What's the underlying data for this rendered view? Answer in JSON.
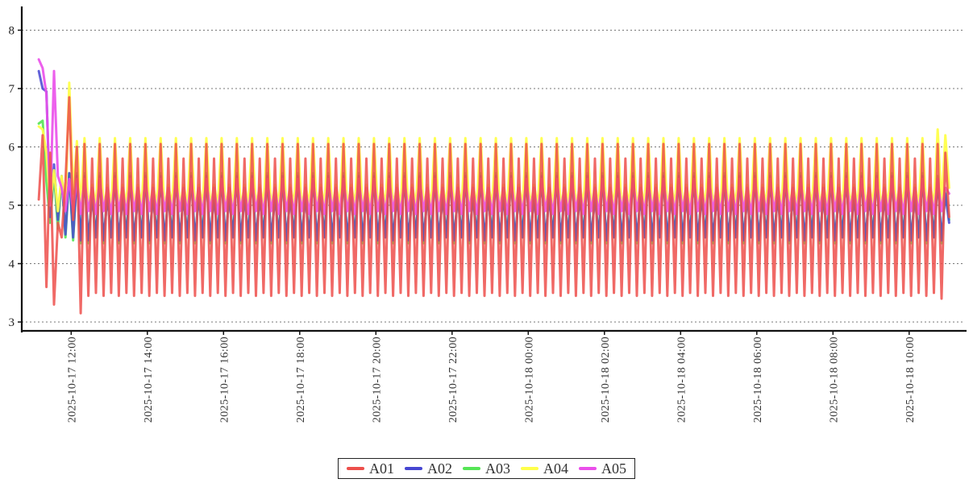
{
  "chart_data": {
    "type": "line",
    "title": "",
    "background": "#ffffff",
    "grid": {
      "shown": true,
      "style": "dashed",
      "color": "#777777"
    },
    "y_axis": {
      "ticks": [
        3,
        4,
        5,
        6,
        7,
        8
      ],
      "range": [
        2.85,
        8.4
      ],
      "label": ""
    },
    "x_axis": {
      "label": "",
      "tick_rotation_degrees": 90,
      "tick_interval_minutes": 120,
      "tick_labels": [
        "2025-10-17 12:00",
        "2025-10-17 14:00",
        "2025-10-17 16:00",
        "2025-10-17 18:00",
        "2025-10-17 20:00",
        "2025-10-17 22:00",
        "2025-10-18 00:00",
        "2025-10-18 02:00",
        "2025-10-18 04:00",
        "2025-10-18 06:00",
        "2025-10-18 08:00",
        "2025-10-18 10:00"
      ]
    },
    "sampling": {
      "sample_interval_minutes": 6,
      "start_minutes_before_first_tick": 51
    },
    "draw_order": [
      "A03",
      "A02",
      "A04",
      "A05",
      "A01"
    ],
    "series": [
      {
        "name": "A01",
        "color": "#ed4f4b",
        "opacity": 0.85,
        "intro": [
          5.1,
          6.2,
          3.6,
          5.9,
          3.3,
          4.7,
          4.45,
          5.4,
          6.85,
          4.75,
          6.0,
          3.15,
          6.05,
          3.45,
          5.8,
          3.5
        ],
        "cycle": [
          6.05,
          3.45,
          5.8,
          3.5
        ],
        "cycle_repeats": 55,
        "outro": [
          6.05,
          3.4,
          5.9,
          4.8
        ]
      },
      {
        "name": "A02",
        "color": "#4646d2",
        "opacity": 0.85,
        "intro": [
          7.3,
          7.0,
          6.95,
          4.8,
          5.7,
          4.75,
          5.5,
          4.5,
          5.55,
          4.45,
          5.5,
          4.4,
          5.5,
          4.4,
          5.15,
          4.45
        ],
        "cycle": [
          5.5,
          4.4,
          5.15,
          4.45
        ],
        "cycle_repeats": 55,
        "outro": [
          5.45,
          4.4,
          5.2,
          4.7
        ]
      },
      {
        "name": "A03",
        "color": "#55e555",
        "opacity": 0.9,
        "intro": [
          6.4,
          6.45,
          5.4,
          4.7,
          5.55,
          4.6,
          5.5,
          4.45,
          5.55,
          4.4,
          5.55,
          4.35,
          5.55,
          4.35,
          5.2,
          4.45
        ],
        "cycle": [
          5.55,
          4.35,
          5.2,
          4.45
        ],
        "cycle_repeats": 55,
        "outro": [
          5.5,
          4.35,
          5.25,
          4.75
        ]
      },
      {
        "name": "A04",
        "color": "#ffff4a",
        "opacity": 0.95,
        "intro": [
          6.35,
          6.3,
          5.9,
          5.0,
          5.6,
          4.9,
          5.5,
          5.0,
          7.1,
          5.2,
          6.1,
          4.95,
          6.15,
          4.95,
          5.35,
          5.0
        ],
        "cycle": [
          6.15,
          4.95,
          5.35,
          5.0
        ],
        "cycle_repeats": 55,
        "outro": [
          6.3,
          5.0,
          6.2,
          5.3
        ]
      },
      {
        "name": "A05",
        "color": "#ea4fea",
        "opacity": 0.9,
        "intro": [
          7.5,
          7.35,
          6.9,
          5.0,
          7.3,
          5.5,
          5.3,
          4.9,
          5.45,
          4.9,
          5.45,
          4.85,
          5.45,
          4.9,
          5.3,
          4.85
        ],
        "cycle": [
          5.45,
          4.9,
          5.3,
          4.85
        ],
        "cycle_repeats": 55,
        "outro": [
          5.45,
          4.9,
          5.3,
          5.2
        ]
      }
    ],
    "legend": {
      "position": "bottom-center",
      "entries": [
        "A01",
        "A02",
        "A03",
        "A04",
        "A05"
      ]
    }
  }
}
